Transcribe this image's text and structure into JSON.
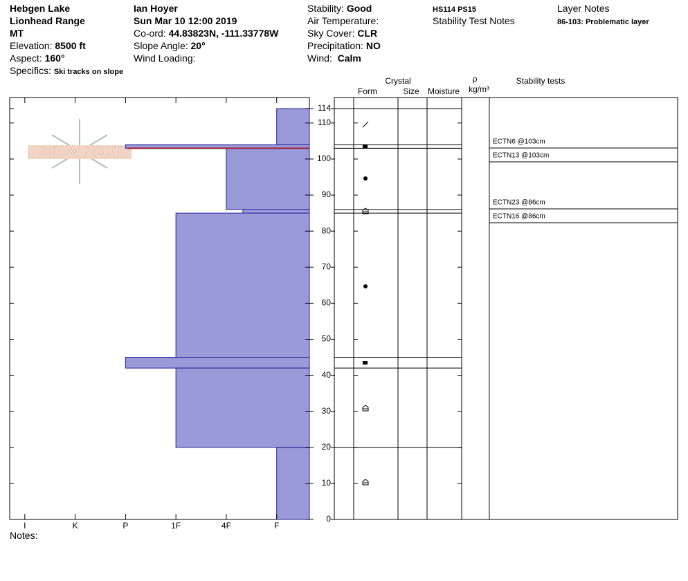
{
  "header": {
    "location": [
      "Hebgen Lake",
      "Lionhead Range",
      "MT"
    ],
    "elevation": {
      "label": "Elevation:",
      "value": "8500 ft"
    },
    "aspect": {
      "label": "Aspect:",
      "value": "160°"
    },
    "specifics": {
      "label": "Specifics:",
      "value": "Ski tracks on slope"
    },
    "observer": "Ian Hoyer",
    "date": "Sun Mar 10 12:00 2019",
    "coord": {
      "label": "Co-ord:",
      "value": "44.83823N, -111.33778W"
    },
    "slope_angle": {
      "label": "Slope Angle:",
      "value": "20°"
    },
    "wind_loading": {
      "label": "Wind Loading:"
    },
    "stability": {
      "label": "Stability:",
      "value": "Good"
    },
    "air_temperature": {
      "label": "Air Temperature:"
    },
    "sky_cover": {
      "label": "Sky Cover:",
      "value": "CLR"
    },
    "precipitation": {
      "label": "Precipitation:",
      "value": "NO"
    },
    "wind": {
      "label": "Wind:",
      "value": "Calm"
    },
    "hs_ps": "HS114 PS15",
    "stability_test_notes": "Stability Test Notes",
    "layer_notes_title": "Layer Notes",
    "layer_note": "86-103: Problematic layer"
  },
  "logo": "SNOW PILOT",
  "chart_data": {
    "type": "profile",
    "ylim": [
      0,
      114
    ],
    "yticks": [
      0,
      10,
      20,
      30,
      40,
      50,
      60,
      70,
      80,
      90,
      100,
      110,
      114
    ],
    "xlim": [
      6.3,
      0.35
    ],
    "xticks": [
      {
        "value": 6,
        "label": "I"
      },
      {
        "value": 5,
        "label": "K"
      },
      {
        "value": 4,
        "label": "P"
      },
      {
        "value": 3,
        "label": "1F"
      },
      {
        "value": 2,
        "label": "4F"
      },
      {
        "value": 1,
        "label": "F"
      }
    ],
    "color": "#9a9ad8",
    "edge": "#22229a",
    "layers": [
      {
        "top": 114,
        "bottom": 104,
        "hardness": 1
      },
      {
        "top": 104,
        "bottom": 103,
        "hardness": 4
      },
      {
        "top": 103,
        "bottom": 86,
        "hardness": 2
      },
      {
        "top": 86,
        "bottom": 85,
        "hardness": 1.67
      },
      {
        "top": 85,
        "bottom": 45,
        "hardness": 3
      },
      {
        "top": 45,
        "bottom": 42,
        "hardness": 4
      },
      {
        "top": 42,
        "bottom": 20,
        "hardness": 3
      },
      {
        "top": 20,
        "bottom": 0,
        "hardness": 1
      }
    ],
    "highlight": {
      "height": 103,
      "color": "#a0203a"
    },
    "columns": {
      "crystal": "Crystal",
      "form": "Form",
      "size": "Size",
      "moisture": "Moisture",
      "rho": "ρ",
      "density_unit": "kg/m³",
      "stability_tests": "Stability tests"
    },
    "stability_tests": [
      "ECTN6 @103cm",
      "ECTN13 @103cm",
      "ECTN23 @86cm",
      "ECTN16 @86cm"
    ]
  },
  "notes_label": "Notes:"
}
